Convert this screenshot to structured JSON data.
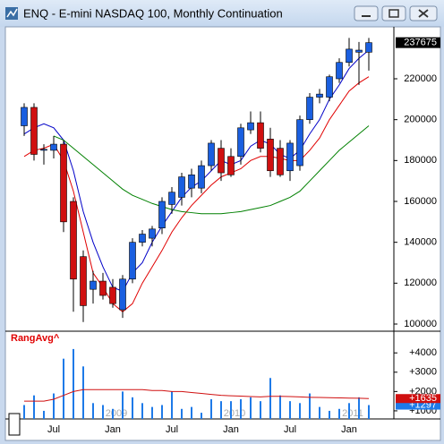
{
  "window": {
    "title": "ENQ - E-mini NASDAQ 100, Monthly Continuation"
  },
  "chart_data": [
    {
      "type": "candlestick",
      "candles": {
        "open": [
          197000,
          206000,
          185000,
          185000,
          188000,
          160000,
          133000,
          117000,
          121000,
          118000,
          107000,
          122000,
          140000,
          142000,
          147000,
          158500,
          162000,
          166500,
          166500,
          177500,
          186000,
          182000,
          182000,
          195000,
          198500,
          190500,
          186000,
          175000,
          177500,
          200000,
          211000,
          211000,
          220000,
          228000,
          233000,
          233000
        ],
        "high": [
          208000,
          208000,
          188000,
          192000,
          190000,
          162000,
          136000,
          126000,
          125000,
          122000,
          124000,
          142000,
          146000,
          148000,
          162000,
          167000,
          174000,
          176000,
          180000,
          190000,
          190000,
          186000,
          198000,
          204000,
          204000,
          196000,
          190000,
          190000,
          202000,
          213000,
          215000,
          222000,
          230000,
          240000,
          238000,
          240000
        ],
        "low": [
          192000,
          180000,
          178000,
          181000,
          145000,
          106000,
          101000,
          110000,
          112000,
          108000,
          103000,
          120000,
          138000,
          138000,
          144000,
          154000,
          158000,
          162000,
          164000,
          175000,
          170000,
          172000,
          178000,
          193000,
          184000,
          172000,
          172000,
          170000,
          175000,
          198000,
          208000,
          209000,
          218000,
          226000,
          217000,
          224000
        ],
        "close": [
          206000,
          183000,
          185500,
          188000,
          150000,
          122000,
          109000,
          121000,
          114000,
          110000,
          122000,
          140000,
          144000,
          146500,
          160000,
          164500,
          172000,
          173000,
          177500,
          188500,
          174000,
          173000,
          196000,
          198500,
          186000,
          175000,
          173000,
          188500,
          200000,
          211000,
          212500,
          221000,
          228000,
          234500,
          234000,
          237675
        ]
      },
      "up_color": "#1a5fe0",
      "down_color": "#d01010",
      "lines": [
        {
          "color": "#0000c8",
          "values": [
            193000,
            196000,
            198000,
            196000,
            190000,
            175000,
            155000,
            140000,
            128000,
            118000,
            116000,
            125000,
            130000,
            140000,
            148000,
            155000,
            162000,
            167000,
            170000,
            175000,
            180000,
            178000,
            180000,
            187000,
            190000,
            188000,
            183000,
            181000,
            185000,
            193000,
            200000,
            210000,
            217000,
            225000,
            230000,
            234000
          ]
        },
        {
          "color": "#e00000",
          "values": [
            182000,
            185000,
            186000,
            188000,
            180000,
            165000,
            145000,
            125000,
            118000,
            110000,
            106000,
            110000,
            120000,
            128000,
            136000,
            145000,
            152000,
            158000,
            163000,
            168000,
            172000,
            174000,
            176000,
            180000,
            182000,
            182000,
            181000,
            180000,
            180000,
            185000,
            191000,
            200000,
            207000,
            214000,
            218000,
            221000
          ]
        },
        {
          "color": "#008000",
          "values": [
            null,
            null,
            null,
            192000,
            190000,
            186000,
            182000,
            178000,
            174000,
            170000,
            166000,
            163000,
            161000,
            159000,
            157500,
            156000,
            155000,
            154500,
            154000,
            154000,
            154000,
            154500,
            155000,
            156000,
            157000,
            158000,
            160000,
            162000,
            165000,
            170000,
            175000,
            180000,
            185000,
            189000,
            193000,
            197000
          ]
        }
      ],
      "ylim": [
        96500,
        245400
      ],
      "yticks": [
        100000,
        120000,
        140000,
        160000,
        180000,
        200000,
        220000
      ]
    },
    {
      "type": "bar",
      "title": "RangAvg^",
      "categories": [
        null,
        null,
        null,
        "Jul",
        null,
        null,
        null,
        null,
        null,
        "Jan",
        null,
        null,
        null,
        null,
        null,
        "Jul",
        null,
        null,
        null,
        null,
        null,
        "Jan",
        null,
        null,
        null,
        null,
        null,
        "Jul",
        null,
        null,
        null,
        null,
        null,
        "Jan",
        null,
        null
      ],
      "year_labels": [
        null,
        null,
        null,
        null,
        null,
        null,
        null,
        null,
        null,
        "2009",
        null,
        null,
        null,
        null,
        null,
        null,
        null,
        null,
        null,
        null,
        null,
        "2010",
        null,
        null,
        null,
        null,
        null,
        null,
        null,
        null,
        null,
        null,
        null,
        "2011",
        null,
        null
      ],
      "series": [
        {
          "color": "#1e7ae8",
          "values": [
            1300,
            1800,
            1000,
            1900,
            3700,
            4200,
            3300,
            1400,
            1300,
            1100,
            2000,
            1700,
            1400,
            1200,
            1300,
            2000,
            1100,
            1200,
            900,
            1600,
            1500,
            1500,
            1600,
            1700,
            1500,
            2700,
            1800,
            1500,
            1400,
            1900,
            1200,
            1000,
            1100,
            1400,
            1700,
            1297
          ],
          "value_labels": [
            null,
            null,
            null,
            null,
            null,
            null,
            null,
            null,
            null,
            null,
            null,
            null,
            null,
            null,
            null,
            null,
            null,
            null,
            null,
            null,
            null,
            null,
            null,
            null,
            null,
            null,
            null,
            null,
            null,
            null,
            null,
            null,
            null,
            null,
            null,
            "+1297"
          ]
        },
        {
          "type": "line",
          "color": "#d01010",
          "values": [
            1500,
            1500,
            1500,
            1600,
            1800,
            2000,
            2100,
            2100,
            2100,
            2100,
            2100,
            2100,
            2100,
            2050,
            2050,
            2000,
            2000,
            1950,
            1900,
            1850,
            1800,
            1780,
            1760,
            1740,
            1720,
            1750,
            1750,
            1740,
            1720,
            1700,
            1690,
            1680,
            1670,
            1660,
            1650,
            1635
          ],
          "value_labels": [
            null,
            null,
            null,
            null,
            null,
            null,
            null,
            null,
            null,
            null,
            null,
            null,
            null,
            null,
            null,
            null,
            null,
            null,
            null,
            null,
            null,
            null,
            null,
            null,
            null,
            null,
            null,
            null,
            null,
            null,
            null,
            null,
            null,
            null,
            null,
            "+1635"
          ]
        }
      ],
      "ylim": [
        580,
        5030
      ],
      "yticks": [
        {
          "value": 1000,
          "label": "+1000"
        },
        {
          "value": 2000,
          "label": "+2000"
        },
        {
          "value": 3000,
          "label": "+3000"
        },
        {
          "value": 4000,
          "label": "+4000"
        }
      ]
    }
  ]
}
